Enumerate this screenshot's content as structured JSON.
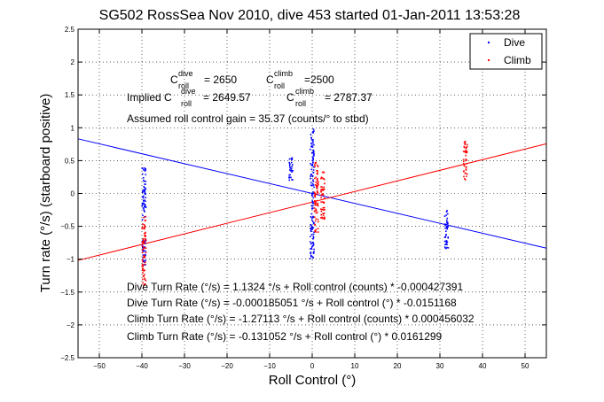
{
  "chart_data": {
    "type": "scatter",
    "title": "SG502 RossSea Nov 2010, dive 453 started 01-Jan-2011 13:53:28",
    "xlabel": "Roll Control (°)",
    "ylabel": "Turn rate (°/s) (starboard positive)",
    "xlim": [
      -55,
      55
    ],
    "ylim": [
      -2.5,
      2.5
    ],
    "x_ticks": [
      -50,
      -40,
      -30,
      -20,
      -10,
      0,
      10,
      20,
      30,
      40,
      50
    ],
    "y_ticks": [
      -2.5,
      -2,
      -1.5,
      -1,
      -0.5,
      0,
      0.5,
      1,
      1.5,
      2,
      2.5
    ],
    "grid": true,
    "legend": {
      "placement": "top-right",
      "entries": [
        "Dive",
        "Climb"
      ]
    },
    "series": [
      {
        "name": "Dive",
        "color": "#0000ff",
        "clusters": [
          {
            "x": -39.5,
            "y_range": [
              -0.4,
              0.45
            ]
          },
          {
            "x": -39.5,
            "y_range": [
              -1.1,
              -0.7
            ]
          },
          {
            "x": -5,
            "y_range": [
              0.2,
              0.55
            ]
          },
          {
            "x": 0,
            "y_range": [
              -1.0,
              1.0
            ]
          },
          {
            "x": 31.5,
            "y_range": [
              -0.85,
              -0.25
            ]
          }
        ],
        "fit": {
          "slope": -0.0151168,
          "intercept": -0.000185051
        }
      },
      {
        "name": "Climb",
        "color": "#ff0000",
        "clusters": [
          {
            "x": -39.5,
            "y_range": [
              -1.4,
              -0.35
            ]
          },
          {
            "x": 1,
            "y_range": [
              -0.6,
              0.5
            ]
          },
          {
            "x": 2.5,
            "y_range": [
              -0.4,
              0.35
            ]
          },
          {
            "x": 36,
            "y_range": [
              0.2,
              0.8
            ]
          }
        ],
        "fit": {
          "slope": 0.0161299,
          "intercept": -0.131052
        }
      }
    ],
    "annotations": {
      "c_roll_dive_label": "C",
      "c_roll_dive_sup": "dive",
      "c_roll_dive_sub": "roll",
      "c_roll_dive_value": "= 2650",
      "c_roll_climb_label": "C",
      "c_roll_climb_sup": "climb",
      "c_roll_climb_sub": "roll",
      "c_roll_climb_value": "=2500",
      "implied_prefix": "Implied C",
      "implied_dive_sup": "dive",
      "implied_dive_sub": "roll",
      "implied_dive_value": "= 2649.57",
      "implied_climb_label": "C",
      "implied_climb_sup": "climb",
      "implied_climb_sub": "roll",
      "implied_climb_value": "= 2787.37",
      "gain": "Assumed roll control gain = 35.37 (counts/° to stbd)",
      "fit1": "Dive Turn Rate (°/s) = 1.1324 °/s + Roll control (counts) * -0.000427391",
      "fit2": "Dive Turn Rate (°/s) = -0.000185051 °/s + Roll control (°) * -0.0151168",
      "fit3": "Climb Turn Rate (°/s) = -1.27113 °/s + Roll control (counts) * 0.000456032",
      "fit4": "Climb Turn Rate (°/s) = -0.131052 °/s + Roll control (°) * 0.0161299"
    }
  }
}
